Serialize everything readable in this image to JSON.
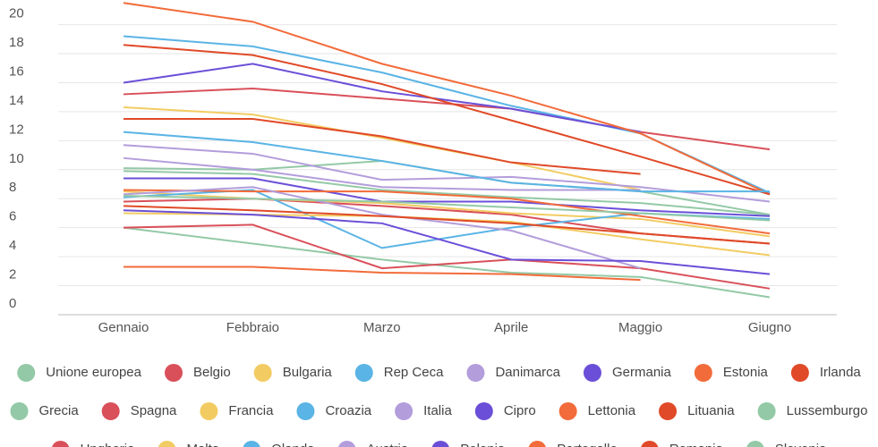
{
  "chart_data": {
    "type": "line",
    "categories": [
      "Gennaio",
      "Febbraio",
      "Marzo",
      "Aprile",
      "Maggio",
      "Giugno"
    ],
    "ylim": [
      0,
      21.7
    ],
    "yticks": [
      0,
      2,
      4,
      6,
      8,
      10,
      12,
      14,
      16,
      18,
      20
    ],
    "grid": true,
    "series": [
      {
        "name": "Unione europea",
        "color": "#93c9a6",
        "values": [
          10.1,
          10.0,
          10.6,
          9.1,
          8.5,
          6.9
        ]
      },
      {
        "name": "Belgio",
        "color": "#d9505a",
        "values": [
          15.2,
          15.6,
          14.9,
          14.2,
          12.6,
          11.4
        ]
      },
      {
        "name": "Bulgaria",
        "color": "#f2cc63",
        "values": [
          14.3,
          13.8,
          12.2,
          10.5,
          8.6,
          null
        ]
      },
      {
        "name": "Rep Ceca",
        "color": "#5ab4e5",
        "values": [
          19.2,
          18.5,
          16.7,
          14.4,
          12.5,
          8.4
        ]
      },
      {
        "name": "Danimarca",
        "color": "#b39ddb",
        "values": [
          11.7,
          11.1,
          9.3,
          9.5,
          8.8,
          7.8
        ]
      },
      {
        "name": "Germania",
        "color": "#6b4fd8",
        "values": [
          16.0,
          17.3,
          15.4,
          14.2,
          12.6,
          null
        ]
      },
      {
        "name": "Estonia",
        "color": "#f26b3a",
        "values": [
          21.5,
          20.2,
          17.3,
          15.1,
          12.5,
          8.3
        ]
      },
      {
        "name": "Irlanda",
        "color": "#e04a28",
        "values": [
          18.6,
          17.9,
          15.9,
          13.4,
          10.9,
          8.3
        ]
      },
      {
        "name": "Grecia",
        "color": "#93c9a6",
        "values": [
          9.9,
          9.7,
          8.6,
          8.1,
          7.7,
          6.9
        ]
      },
      {
        "name": "Spagna",
        "color": "#d9505a",
        "values": [
          7.8,
          8.0,
          7.5,
          6.9,
          5.6,
          4.9
        ]
      },
      {
        "name": "Francia",
        "color": "#f2cc63",
        "values": [
          8.5,
          8.0,
          7.7,
          7.0,
          6.6,
          5.4
        ]
      },
      {
        "name": "Croazia",
        "color": "#5ab4e5",
        "values": [
          8.1,
          8.6,
          4.6,
          6.0,
          7.0,
          6.6
        ]
      },
      {
        "name": "Italia",
        "color": "#b39ddb",
        "values": [
          10.8,
          10.0,
          8.8,
          8.6,
          8.6,
          null
        ]
      },
      {
        "name": "Cipro",
        "color": "#6b4fd8",
        "values": [
          9.4,
          9.4,
          7.8,
          7.8,
          7.2,
          6.8
        ]
      },
      {
        "name": "Lettonia",
        "color": "#f26b3a",
        "values": [
          8.6,
          8.5,
          8.5,
          8.0,
          6.8,
          5.6
        ]
      },
      {
        "name": "Lituania",
        "color": "#e04a28",
        "values": [
          13.5,
          13.5,
          12.3,
          10.5,
          9.7,
          null
        ]
      },
      {
        "name": "Lussemburgo",
        "color": "#93c9a6",
        "values": [
          6.0,
          4.9,
          3.8,
          2.9,
          2.6,
          1.2
        ]
      },
      {
        "name": "Ungheria",
        "color": "#d9505a",
        "values": [
          6.0,
          6.2,
          3.2,
          3.8,
          3.2,
          1.8
        ]
      },
      {
        "name": "Malta",
        "color": "#f2cc63",
        "values": [
          7.0,
          6.9,
          6.8,
          6.4,
          5.2,
          4.1
        ]
      },
      {
        "name": "Olanda",
        "color": "#5ab4e5",
        "values": [
          12.6,
          11.9,
          10.6,
          9.1,
          8.5,
          8.5
        ]
      },
      {
        "name": "Austria",
        "color": "#b39ddb",
        "values": [
          8.3,
          8.8,
          6.9,
          5.8,
          3.2,
          null
        ]
      },
      {
        "name": "Polonia",
        "color": "#6b4fd8",
        "values": [
          7.2,
          6.9,
          6.3,
          3.8,
          3.7,
          2.8
        ]
      },
      {
        "name": "Portogallo",
        "color": "#f26b3a",
        "values": [
          3.3,
          3.3,
          2.9,
          2.8,
          2.4,
          null
        ]
      },
      {
        "name": "Romania",
        "color": "#e04a28",
        "values": [
          7.5,
          7.2,
          6.8,
          6.3,
          5.6,
          4.9
        ]
      },
      {
        "name": "Slovenia",
        "color": "#93c9a6",
        "values": [
          8.2,
          8.0,
          7.8,
          7.4,
          7.0,
          6.5
        ]
      }
    ]
  }
}
